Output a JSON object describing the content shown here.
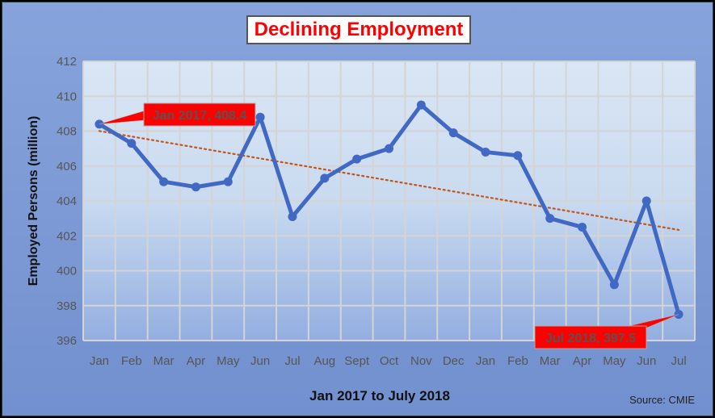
{
  "chart_data": {
    "type": "line",
    "title": "Declining Employment",
    "xlabel": "Jan 2017 to July 2018",
    "ylabel": "Employed Persons (million)",
    "source": "Source: CMIE",
    "categories": [
      "Jan",
      "Feb",
      "Mar",
      "Apr",
      "May",
      "Jun",
      "Jul",
      "Aug",
      "Sept",
      "Oct",
      "Nov",
      "Dec",
      "Jan",
      "Feb",
      "Mar",
      "Apr",
      "May",
      "Jun",
      "Jul"
    ],
    "values": [
      408.4,
      407.3,
      405.1,
      404.8,
      405.1,
      408.8,
      403.1,
      405.3,
      406.4,
      407.0,
      409.5,
      407.9,
      406.8,
      406.6,
      403.0,
      402.5,
      399.2,
      404.0,
      397.5
    ],
    "ylim": [
      396,
      412
    ],
    "yticks": [
      396,
      398,
      400,
      402,
      404,
      406,
      408,
      410,
      412
    ],
    "grid": true,
    "trendline": {
      "type": "linear",
      "style": "dotted",
      "color": "#c0561b"
    },
    "annotations": [
      {
        "text": "Jan 2017, 408.4",
        "index": 0
      },
      {
        "text": "Jul 2018, 397.5",
        "index": 18
      }
    ],
    "colors": {
      "series": "#4169c4",
      "callout": "#ff0000",
      "callout_text": "#555555"
    }
  }
}
